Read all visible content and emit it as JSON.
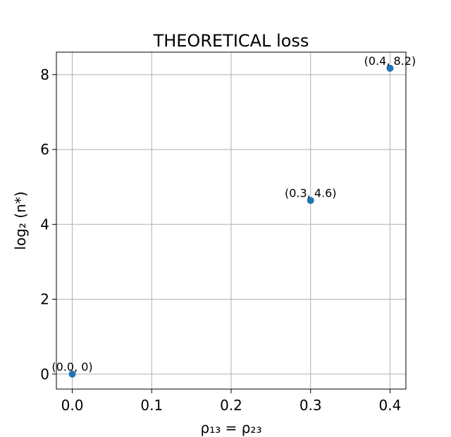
{
  "chart_data": {
    "type": "scatter",
    "title": "THEORETICAL loss",
    "xlabel": "ρ₁₃ = ρ₂₃",
    "ylabel": "log₂ (n*)",
    "xlim": [
      -0.02,
      0.42
    ],
    "ylim": [
      -0.4,
      8.6
    ],
    "xticks": [
      0.0,
      0.1,
      0.2,
      0.3,
      0.4
    ],
    "xtick_labels": [
      "0.0",
      "0.1",
      "0.2",
      "0.3",
      "0.4"
    ],
    "yticks": [
      0,
      2,
      4,
      6,
      8
    ],
    "ytick_labels": [
      "0",
      "2",
      "4",
      "6",
      "8"
    ],
    "grid": true,
    "series": [
      {
        "color": "#1f77b4",
        "points": [
          {
            "x": 0.0,
            "y": 0.0,
            "label": "(0.0, 0)"
          },
          {
            "x": 0.3,
            "y": 4.64,
            "label": "(0.3, 4.6)"
          },
          {
            "x": 0.4,
            "y": 8.17,
            "label": "(0.4, 8.2)"
          }
        ]
      }
    ]
  }
}
